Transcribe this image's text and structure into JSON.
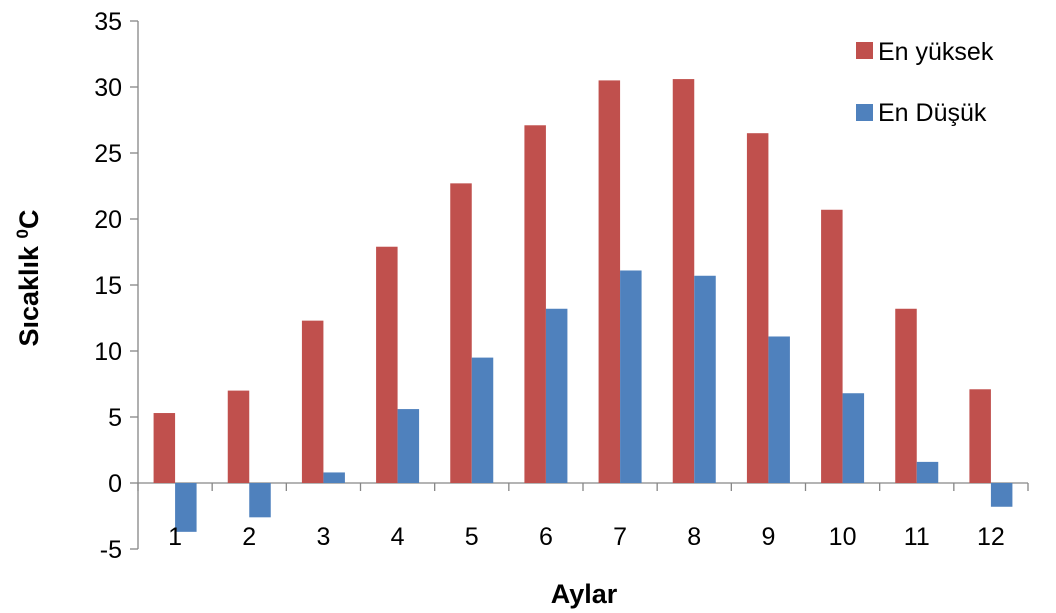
{
  "chart_data": {
    "type": "bar",
    "categories": [
      "1",
      "2",
      "3",
      "4",
      "5",
      "6",
      "7",
      "8",
      "9",
      "10",
      "11",
      "12"
    ],
    "series": [
      {
        "name": "En yüksek",
        "color": "#c0504d",
        "values": [
          5.3,
          7.0,
          12.3,
          17.9,
          22.7,
          27.1,
          30.5,
          30.6,
          26.5,
          20.7,
          13.2,
          7.1
        ]
      },
      {
        "name": "En Düşük",
        "color": "#4f81bd",
        "values": [
          -3.7,
          -2.6,
          0.8,
          5.6,
          9.5,
          13.2,
          16.1,
          15.7,
          11.1,
          6.8,
          1.6,
          -1.8
        ]
      }
    ],
    "xlabel": "Aylar",
    "ylabel_main": "Sıcaklık ",
    "ylabel_sup": "0",
    "ylabel_unit": "C",
    "ylim": [
      -5,
      35
    ],
    "yticks": [
      "-5",
      "0",
      "5",
      "10",
      "15",
      "20",
      "25",
      "30",
      "35"
    ],
    "grid": false,
    "legend_position": "top-right"
  }
}
